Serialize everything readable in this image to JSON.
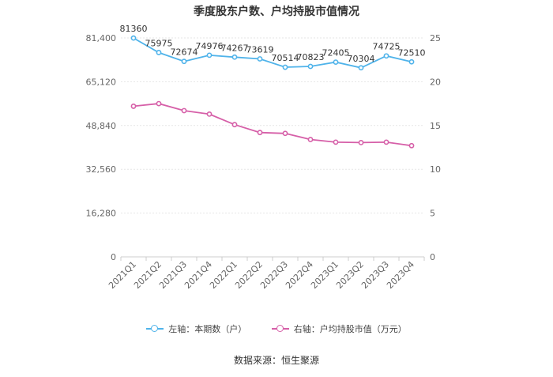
{
  "chart_data": {
    "type": "line",
    "title": "季度股东户数、户均持股市值情况",
    "categories": [
      "2021Q1",
      "2021Q2",
      "2021Q3",
      "2021Q4",
      "2022Q1",
      "2022Q2",
      "2022Q3",
      "2022Q4",
      "2023Q1",
      "2023Q2",
      "2023Q3",
      "2023Q4"
    ],
    "left_axis": {
      "min": 0,
      "max": 81400,
      "ticks": [
        0,
        16280,
        32560,
        48840,
        65120,
        81400
      ],
      "tick_labels": [
        "0",
        "16,280",
        "32,560",
        "48,840",
        "65,120",
        "81,400"
      ]
    },
    "right_axis": {
      "min": 0,
      "max": 25,
      "ticks": [
        0,
        5,
        10,
        15,
        20,
        25
      ],
      "tick_labels": [
        "0",
        "5",
        "10",
        "15",
        "20",
        "25"
      ]
    },
    "series": [
      {
        "name": "左轴：本期数（户）",
        "axis": "left",
        "color": "#4fb3ea",
        "values": [
          81360,
          75975,
          72674,
          74976,
          74267,
          73619,
          70514,
          70823,
          72405,
          70304,
          74725,
          72510
        ],
        "value_labels": [
          "81360",
          "75975",
          "72674",
          "74976",
          "74267",
          "73619",
          "70514",
          "70823",
          "72405",
          "70304",
          "74725",
          "72510"
        ]
      },
      {
        "name": "右轴：户均持股市值（万元）",
        "axis": "right",
        "color": "#d65fa8",
        "values": [
          17.2,
          17.5,
          16.7,
          16.3,
          15.1,
          14.2,
          14.1,
          13.4,
          13.1,
          13.05,
          13.1,
          12.7
        ]
      }
    ],
    "grid": true,
    "legend_position": "bottom"
  },
  "source": "数据来源：恒生聚源"
}
